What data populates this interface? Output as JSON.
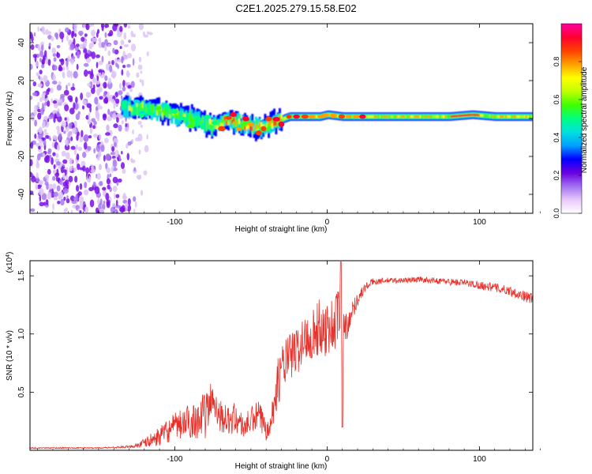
{
  "title": "C2E1.2025.279.15.58.E02",
  "colors": {
    "snr_line": "#e8302a",
    "axis": "#000000",
    "background": "#ffffff"
  },
  "chart_data": [
    {
      "type": "heatmap",
      "title": "C2E1.2025.279.15.58.E02",
      "xlabel": "Height of straight line (km)",
      "ylabel": "Frequency (Hz)",
      "xlim": [
        -195,
        135
      ],
      "ylim": [
        -50,
        50
      ],
      "x_ticks": [
        -100,
        0,
        100
      ],
      "y_ticks": [
        -40,
        -20,
        0,
        20,
        40
      ],
      "x_tick_labels": [
        "-100",
        "0",
        "100"
      ],
      "y_tick_labels": [
        "-40",
        "-20",
        "0",
        "20",
        "40"
      ],
      "colorbar": {
        "label": "Normalized spectral amplitude",
        "range": [
          0,
          1
        ],
        "ticks": [
          0.0,
          0.2,
          0.4,
          0.6,
          0.8
        ],
        "tick_labels": [
          "0.0",
          "0.2",
          "0.4",
          "0.6",
          "0.8"
        ],
        "colormap": [
          "#ffffff",
          "#e8c8f8",
          "#a070f0",
          "#6a00e0",
          "#0000ff",
          "#00a0ff",
          "#00e0e0",
          "#00ff80",
          "#40ff00",
          "#c0ff00",
          "#ffff00",
          "#ffa000",
          "#ff4000",
          "#ff0030",
          "#ff00a0"
        ]
      },
      "noise_region_x": [
        -195,
        -120
      ],
      "ridge": {
        "description_points_x": [
          -130,
          -110,
          -90,
          -75,
          -65,
          -55,
          -45,
          -40,
          -35,
          -25,
          -15,
          -5,
          0,
          10,
          20,
          40,
          60,
          80,
          95,
          110,
          135
        ],
        "description_points_y": [
          6,
          4,
          0,
          -4,
          -1,
          -3,
          -5,
          -3,
          -2,
          1,
          1,
          1,
          2,
          1,
          1,
          1,
          1,
          1,
          2,
          1,
          1
        ]
      }
    },
    {
      "type": "line",
      "xlabel": "Height of straight line (km)",
      "ylabel": "SNR (10 * v/v)",
      "y_multiplier_label": "(x10",
      "y_multiplier_exp": "4",
      "y_multiplier_close": ")",
      "xlim": [
        -195,
        135
      ],
      "ylim": [
        0,
        1.63
      ],
      "x_ticks": [
        -100,
        0,
        100
      ],
      "y_ticks": [
        0.5,
        1.0,
        1.5
      ],
      "x_tick_labels": [
        "-100",
        "0",
        "100"
      ],
      "y_tick_labels": [
        "0.5",
        "1.0",
        "1.5"
      ],
      "series": [
        {
          "name": "SNR",
          "x": [
            -195,
            -150,
            -130,
            -120,
            -110,
            -100,
            -90,
            -80,
            -75,
            -70,
            -65,
            -60,
            -55,
            -50,
            -45,
            -40,
            -35,
            -33,
            -30,
            -25,
            -20,
            -15,
            -10,
            -5,
            0,
            5,
            8,
            10,
            12,
            15,
            20,
            25,
            30,
            40,
            50,
            60,
            70,
            80,
            90,
            100,
            110,
            120,
            135
          ],
          "values": [
            0.02,
            0.02,
            0.03,
            0.06,
            0.12,
            0.2,
            0.25,
            0.3,
            0.45,
            0.3,
            0.25,
            0.28,
            0.2,
            0.25,
            0.3,
            0.18,
            0.35,
            0.55,
            0.7,
            0.8,
            0.85,
            0.95,
            1.0,
            1.05,
            1.05,
            1.08,
            1.2,
            1.0,
            1.05,
            1.15,
            1.3,
            1.4,
            1.45,
            1.46,
            1.46,
            1.47,
            1.46,
            1.45,
            1.44,
            1.42,
            1.4,
            1.37,
            1.3
          ],
          "noise_amplitude": [
            0.005,
            0.005,
            0.01,
            0.04,
            0.08,
            0.12,
            0.15,
            0.2,
            0.18,
            0.14,
            0.12,
            0.14,
            0.1,
            0.12,
            0.14,
            0.1,
            0.15,
            0.2,
            0.22,
            0.2,
            0.22,
            0.2,
            0.22,
            0.25,
            0.25,
            0.25,
            0.3,
            0.2,
            0.15,
            0.1,
            0.06,
            0.04,
            0.03,
            0.025,
            0.025,
            0.025,
            0.025,
            0.03,
            0.03,
            0.035,
            0.04,
            0.04,
            0.05
          ]
        }
      ]
    }
  ]
}
